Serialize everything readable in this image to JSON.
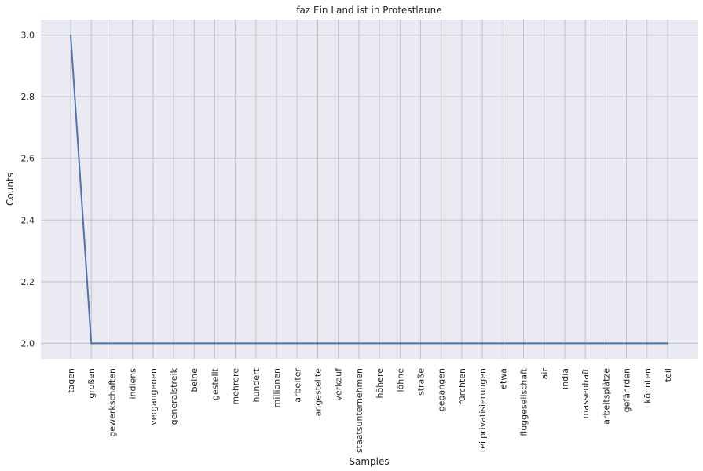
{
  "chart_data": {
    "type": "line",
    "title": "faz Ein Land ist in Protestlaune",
    "xlabel": "Samples",
    "ylabel": "Counts",
    "categories": [
      "tagen",
      "großen",
      "gewerkschaften",
      "indiens",
      "vergangenen",
      "generalstreik",
      "beine",
      "gestellt",
      "mehrere",
      "hundert",
      "millionen",
      "arbeiter",
      "angestellte",
      "verkauf",
      "staatsunternehmen",
      "höhere",
      "löhne",
      "straße",
      "gegangen",
      "fürchten",
      "teilprivatisierungen",
      "etwa",
      "fluggesellschaft",
      "air",
      "india",
      "massenhaft",
      "arbeitsplätze",
      "gefährden",
      "könnten",
      "teil"
    ],
    "values": [
      3,
      2,
      2,
      2,
      2,
      2,
      2,
      2,
      2,
      2,
      2,
      2,
      2,
      2,
      2,
      2,
      2,
      2,
      2,
      2,
      2,
      2,
      2,
      2,
      2,
      2,
      2,
      2,
      2,
      2
    ],
    "yticks": [
      "2.0",
      "2.2",
      "2.4",
      "2.6",
      "2.8",
      "3.0"
    ],
    "ylim": [
      1.95,
      3.05
    ],
    "grid": true,
    "colors": {
      "line": "#4c72b0",
      "background": "#eaeaf2",
      "grid": "#c0c0c8"
    }
  }
}
